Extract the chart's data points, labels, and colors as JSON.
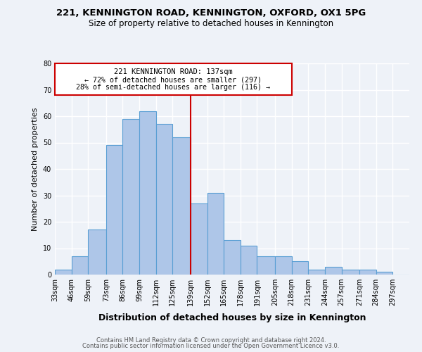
{
  "title1": "221, KENNINGTON ROAD, KENNINGTON, OXFORD, OX1 5PG",
  "title2": "Size of property relative to detached houses in Kennington",
  "xlabel": "Distribution of detached houses by size in Kennington",
  "ylabel": "Number of detached properties",
  "bar_labels": [
    "33sqm",
    "46sqm",
    "59sqm",
    "73sqm",
    "86sqm",
    "99sqm",
    "112sqm",
    "125sqm",
    "139sqm",
    "152sqm",
    "165sqm",
    "178sqm",
    "191sqm",
    "205sqm",
    "218sqm",
    "231sqm",
    "244sqm",
    "257sqm",
    "271sqm",
    "284sqm",
    "297sqm"
  ],
  "bar_values": [
    2,
    7,
    17,
    49,
    59,
    62,
    57,
    52,
    27,
    31,
    13,
    11,
    7,
    7,
    5,
    2,
    3,
    2,
    2,
    1,
    0
  ],
  "bar_left_edges": [
    33,
    46,
    59,
    73,
    86,
    99,
    112,
    125,
    139,
    152,
    165,
    178,
    191,
    205,
    218,
    231,
    244,
    257,
    271,
    284,
    297
  ],
  "bar_widths": [
    13,
    13,
    14,
    13,
    13,
    13,
    13,
    14,
    13,
    13,
    13,
    13,
    14,
    13,
    13,
    13,
    13,
    14,
    13,
    13,
    13
  ],
  "bar_color": "#aec6e8",
  "bar_edge_color": "#5a9fd4",
  "vline_x": 139,
  "vline_color": "#cc0000",
  "box_title": "221 KENNINGTON ROAD: 137sqm",
  "box_line1": "← 72% of detached houses are smaller (297)",
  "box_line2": "28% of semi-detached houses are larger (116) →",
  "box_color": "#cc0000",
  "ylim": [
    0,
    80
  ],
  "yticks": [
    0,
    10,
    20,
    30,
    40,
    50,
    60,
    70,
    80
  ],
  "footer1": "Contains HM Land Registry data © Crown copyright and database right 2024.",
  "footer2": "Contains public sector information licensed under the Open Government Licence v3.0.",
  "bg_color": "#eef2f8",
  "grid_color": "#ffffff"
}
